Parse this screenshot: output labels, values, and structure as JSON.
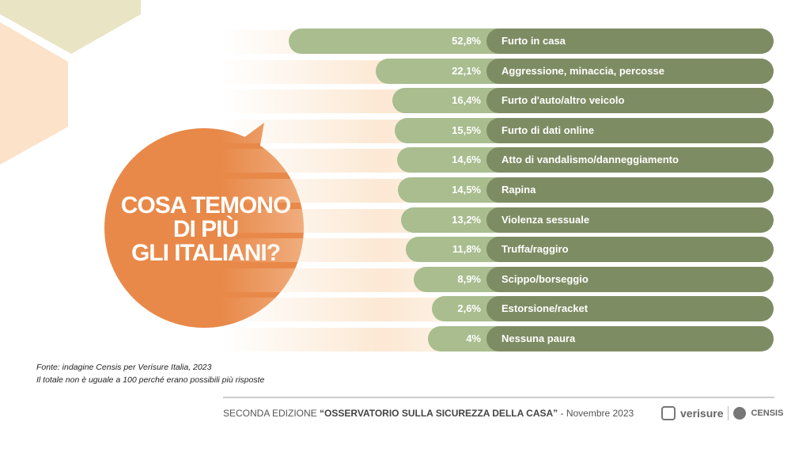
{
  "chart_data": {
    "type": "bar",
    "title": "COSA TEMONO DI PIÙ GLI ITALIANI?",
    "categories": [
      "Furto in casa",
      "Aggressione, minaccia, percosse",
      "Furto d'auto/altro veicolo",
      "Furto di dati online",
      "Atto di vandalismo/danneggiamento",
      "Rapina",
      "Violenza sessuale",
      "Truffa/raggiro",
      "Scippo/borseggio",
      "Estorsione/racket",
      "Nessuna paura"
    ],
    "values": [
      52.8,
      22.1,
      16.4,
      15.5,
      14.6,
      14.5,
      13.2,
      11.8,
      8.9,
      2.6,
      4
    ],
    "labels": [
      "52,8%",
      "22,1%",
      "16,4%",
      "15,5%",
      "14,6%",
      "14,5%",
      "13,2%",
      "11,8%",
      "8,9%",
      "2,6%",
      "4%"
    ],
    "unit": "%"
  },
  "title_lines": [
    "COSA TEMONO",
    "DI PIÙ",
    "GLI ITALIANI?"
  ],
  "source": "Fonte: indagine Censis per Verisure Italia, 2023",
  "note": "Il totale non è uguale a 100 perché erano possibili più risposte",
  "footer": {
    "prefix": "SECONDA EDIZIONE ",
    "bold": "“OSSERVATORIO SULLA SICUREZZA DELLA CASA”",
    "suffix": " - Novembre 2023"
  },
  "logos": {
    "verisure": "verisure",
    "censis": "CENSIS"
  },
  "colors": {
    "bar": "#a9bd8f",
    "label": "#7e8c63",
    "bubble": "#e8894a"
  }
}
